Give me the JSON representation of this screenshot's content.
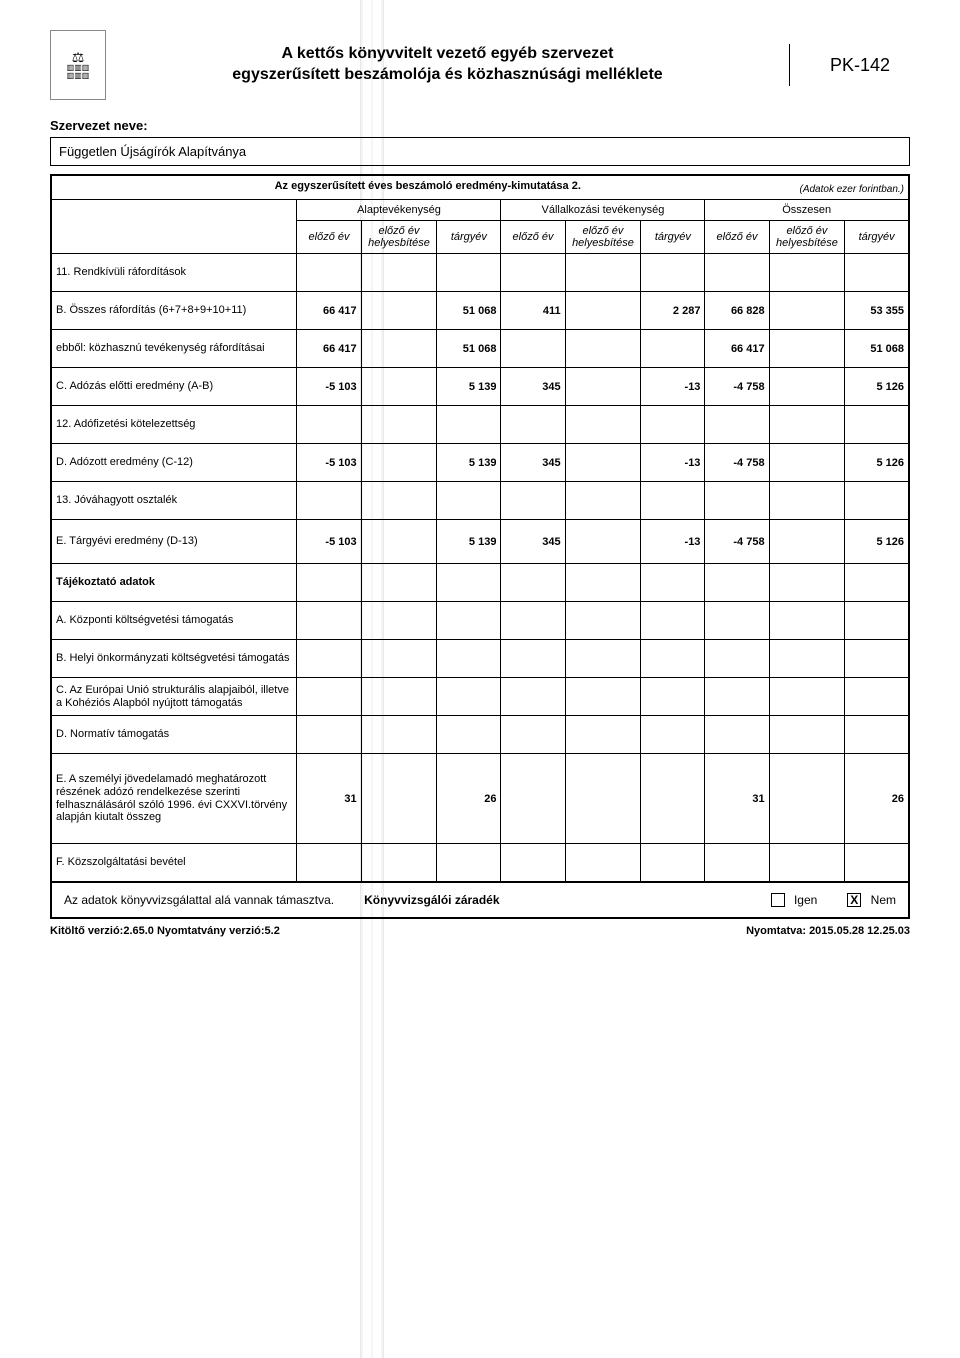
{
  "header": {
    "title_line1": "A kettős könyvvitelt vezető egyéb szervezet",
    "title_line2": "egyszerűsített beszámolója és közhasznúsági melléklete",
    "pk": "PK-142"
  },
  "org_label": "Szervezet neve:",
  "org_name": "Független Újságírók Alapítványa",
  "table": {
    "title": "Az egyszerűsített éves beszámoló eredmény-kimutatása 2.",
    "units": "(Adatok ezer forintban.)",
    "group_headers": [
      "Alaptevékenység",
      "Vállalkozási tevékenység",
      "Összesen"
    ],
    "col_headers": [
      "előző év",
      "előző év helyesbítése",
      "tárgyév"
    ],
    "rows": [
      {
        "label": "11. Rendkívüli ráfordítások",
        "cells": [
          "",
          "",
          "",
          "",
          "",
          "",
          "",
          "",
          ""
        ]
      },
      {
        "label": "B. Összes ráfordítás (6+7+8+9+10+11)",
        "cells": [
          "66 417",
          "",
          "51 068",
          "411",
          "",
          "2 287",
          "66 828",
          "",
          "53 355"
        ]
      },
      {
        "label": "ebből: közhasznú tevékenység ráfordításai",
        "cells": [
          "66 417",
          "",
          "51 068",
          "",
          "",
          "",
          "66 417",
          "",
          "51 068"
        ]
      },
      {
        "label": "C. Adózás előtti eredmény (A-B)",
        "cells": [
          "-5 103",
          "",
          "5 139",
          "345",
          "",
          "-13",
          "-4 758",
          "",
          "5 126"
        ]
      },
      {
        "label": "12. Adófizetési kötelezettség",
        "cells": [
          "",
          "",
          "",
          "",
          "",
          "",
          "",
          "",
          ""
        ]
      },
      {
        "label": "D. Adózott eredmény (C-12)",
        "cells": [
          "-5 103",
          "",
          "5 139",
          "345",
          "",
          "-13",
          "-4 758",
          "",
          "5 126"
        ]
      },
      {
        "label": "13. Jóváhagyott osztalék",
        "cells": [
          "",
          "",
          "",
          "",
          "",
          "",
          "",
          "",
          ""
        ]
      },
      {
        "label": "E. Tárgyévi eredmény (D-13)",
        "cells": [
          "-5 103",
          "",
          "5 139",
          "345",
          "",
          "-13",
          "-4 758",
          "",
          "5 126"
        ],
        "tall": true
      },
      {
        "label": "Tájékoztató adatok",
        "section": true,
        "cells": [
          "",
          "",
          "",
          "",
          "",
          "",
          "",
          "",
          ""
        ]
      },
      {
        "label": "A. Központi költségvetési támogatás",
        "cells": [
          "",
          "",
          "",
          "",
          "",
          "",
          "",
          "",
          ""
        ]
      },
      {
        "label": "B. Helyi önkormányzati költségvetési támogatás",
        "cells": [
          "",
          "",
          "",
          "",
          "",
          "",
          "",
          "",
          ""
        ]
      },
      {
        "label": "C. Az Európai Unió strukturális alapjaiból, illetve a Kohéziós Alapból nyújtott támogatás",
        "cells": [
          "",
          "",
          "",
          "",
          "",
          "",
          "",
          "",
          ""
        ]
      },
      {
        "label": "D. Normatív támogatás",
        "cells": [
          "",
          "",
          "",
          "",
          "",
          "",
          "",
          "",
          ""
        ]
      },
      {
        "label": "E. A személyi jövedelamadó meghatározott részének adózó rendelkezése szerinti felhasználásáról szóló 1996. évi CXXVI.törvény alapján kiutalt összeg",
        "cells": [
          "31",
          "",
          "26",
          "",
          "",
          "",
          "31",
          "",
          "26"
        ],
        "xtall": true
      },
      {
        "label": "F. Közszolgáltatási bevétel",
        "cells": [
          "",
          "",
          "",
          "",
          "",
          "",
          "",
          "",
          ""
        ]
      }
    ]
  },
  "auditor": {
    "text": "Az adatok könyvvizsgálattal alá vannak támasztva.",
    "title": "Könyvvizsgálói záradék",
    "yes": "Igen",
    "no": "Nem",
    "yes_checked": false,
    "no_checked": true
  },
  "footer": {
    "left": "Kitöltő verzió:2.65.0 Nyomtatvány verzió:5.2",
    "right": "Nyomtatva: 2015.05.28 12.25.03"
  }
}
